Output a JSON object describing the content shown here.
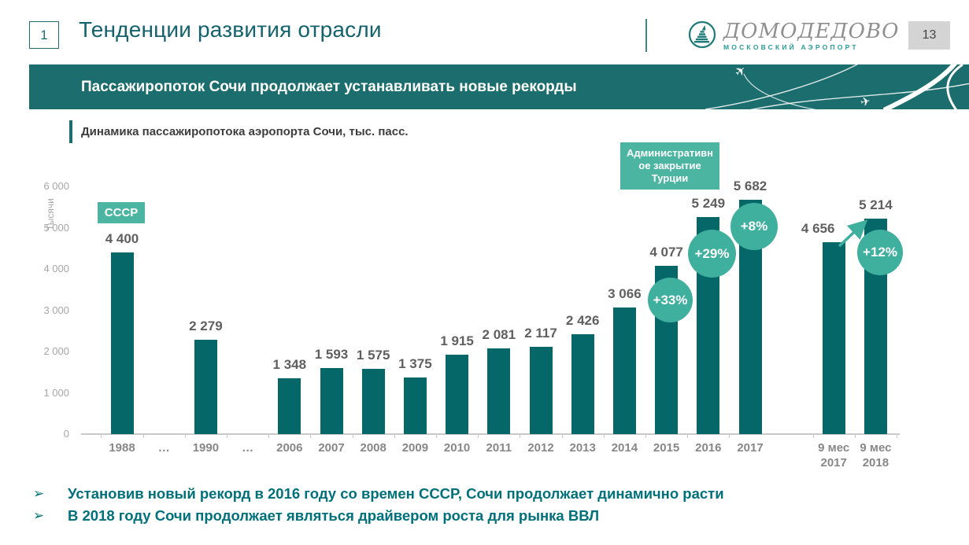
{
  "header": {
    "slide_number": "1",
    "title": "Тенденции развития отрасли",
    "logo": {
      "name": "ДОМОДЕДОВО",
      "tagline": "МОСКОВСКИЙ АЭРОПОРТ"
    },
    "page_number": "13"
  },
  "banner": {
    "title": "Пассажиропоток Сочи продолжает устанавливать новые рекорды"
  },
  "chart": {
    "heading": "Динамика  пассажиропотока аэропорта Сочи, тыс. пасс."
  },
  "chart_data": {
    "type": "bar",
    "title": "Динамика пассажиропотока аэропорта Сочи, тыс. пасс.",
    "ylabel": "Тысячи",
    "ylim": [
      0,
      6000
    ],
    "yticks": [
      "0",
      "1 000",
      "2 000",
      "3 000",
      "4 000",
      "5 000",
      "6 000"
    ],
    "grid": false,
    "legend": false,
    "bar_color": "#056767",
    "categories": [
      "1988",
      "…",
      "1990",
      "…",
      "2006",
      "2007",
      "2008",
      "2009",
      "2010",
      "2011",
      "2012",
      "2013",
      "2014",
      "2015",
      "2016",
      "2017",
      "9 мес\n2017",
      "9 мес\n2018"
    ],
    "values": [
      4400,
      null,
      2279,
      null,
      1348,
      1593,
      1575,
      1375,
      1915,
      2081,
      2117,
      2426,
      3066,
      4077,
      5249,
      5682,
      4656,
      5214
    ],
    "value_labels": [
      "4 400",
      null,
      "2 279",
      null,
      "1 348",
      "1 593",
      "1 575",
      "1 375",
      "1 915",
      "2 081",
      "2 117",
      "2 426",
      "3 066",
      "4 077",
      "5 249",
      "5 682",
      "4 656",
      "5 214"
    ],
    "annotations": {
      "ussr_badge": "СССР",
      "turkey_badge": "Административное закрытие Турции",
      "pct_2015": "+33%",
      "pct_2016": "+29%",
      "pct_2017": "+8%",
      "pct_9m2018": "+12%"
    },
    "annotation_colors": {
      "badge": "#4bb5a2",
      "circle": "#3faf9e"
    }
  },
  "bullets": [
    "Установив новый рекорд в 2016 году со времен СССР, Сочи продолжает динамично расти",
    "В 2018 году Сочи продолжает являться драйвером роста для рынка ВВЛ"
  ]
}
